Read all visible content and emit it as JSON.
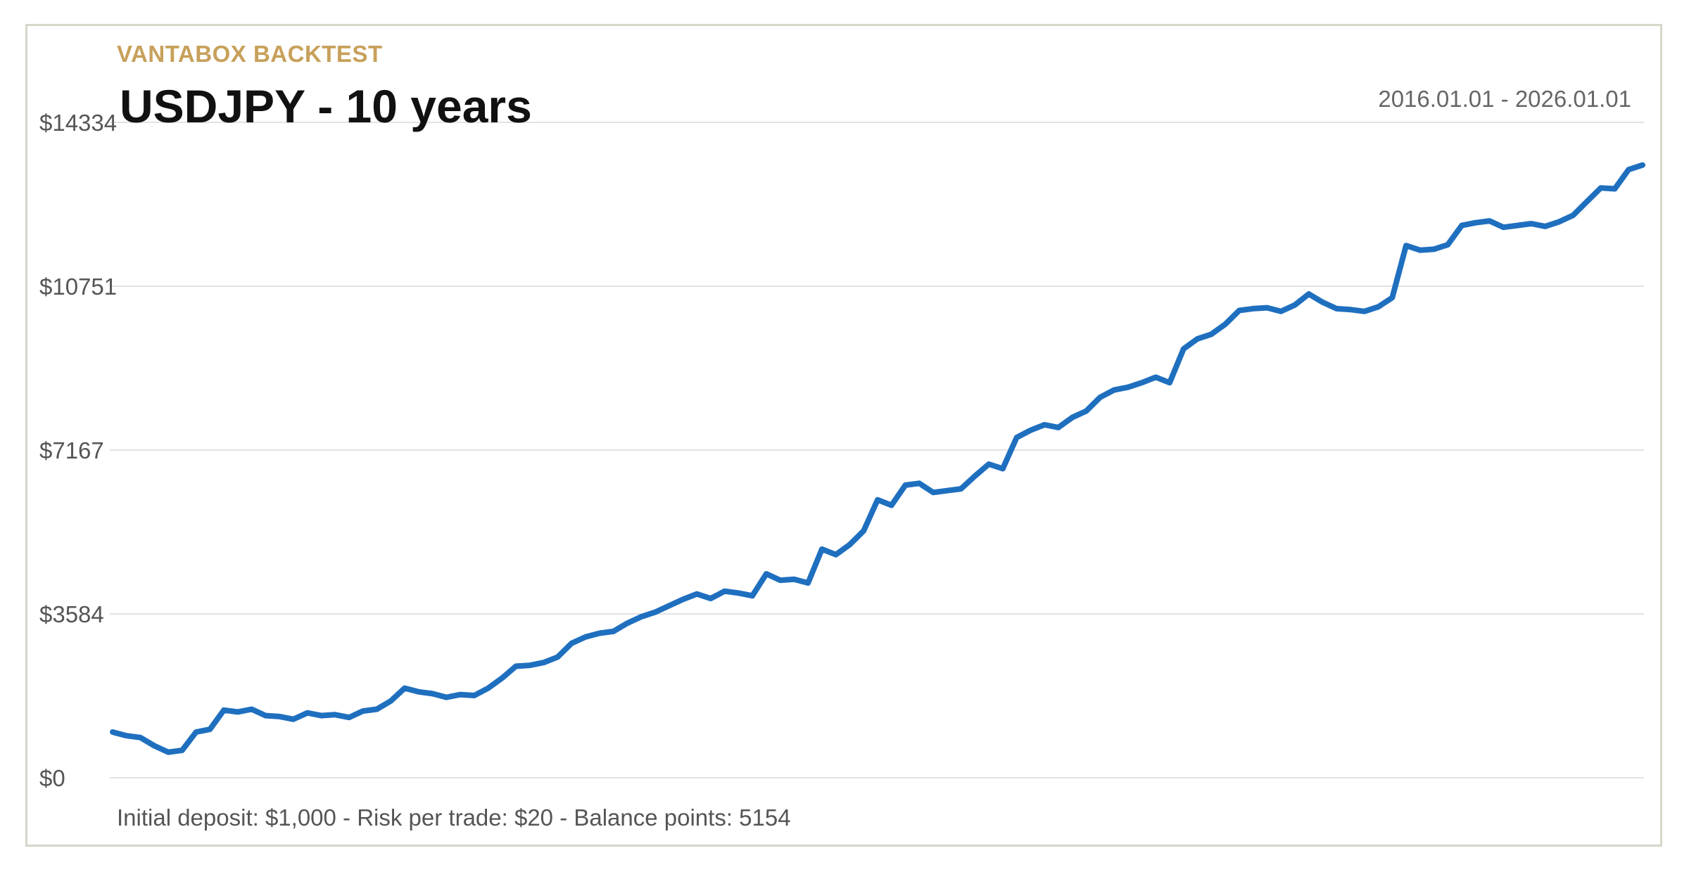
{
  "header": {
    "brand": "VANTABOX BACKTEST",
    "title": "USDJPY - 10 years",
    "date_range": "2016.01.01 - 2026.01.01"
  },
  "footer": {
    "summary": "Initial deposit: $1,000 - Risk per trade: $20 - Balance points: 5154"
  },
  "colors": {
    "line": "#1f6fbf",
    "grid": "#e2e2e2",
    "brand": "#c7a05a",
    "border": "#d6d6c9"
  },
  "chart_data": {
    "type": "line",
    "title": "USDJPY - 10 years",
    "xlabel": "",
    "ylabel": "",
    "ylim": [
      0,
      14334
    ],
    "y_ticks": [
      0,
      3584,
      7167,
      10751,
      14334
    ],
    "y_tick_labels": [
      "$0",
      "$3584",
      "$7167",
      "$10751",
      "$14334"
    ],
    "grid": true,
    "x_range": [
      "2016.01.01",
      "2026.01.01"
    ],
    "series": [
      {
        "values": [
          1000,
          920,
          880,
          700,
          560,
          600,
          1000,
          1060,
          1480,
          1440,
          1500,
          1360,
          1340,
          1280,
          1420,
          1360,
          1380,
          1320,
          1460,
          1500,
          1680,
          1960,
          1880,
          1840,
          1760,
          1820,
          1800,
          1960,
          2180,
          2440,
          2460,
          2520,
          2640,
          2940,
          3080,
          3160,
          3200,
          3380,
          3520,
          3620,
          3760,
          3900,
          4020,
          3920,
          4080,
          4040,
          3980,
          4460,
          4320,
          4340,
          4260,
          5000,
          4880,
          5100,
          5400,
          6080,
          5960,
          6400,
          6440,
          6240,
          6280,
          6320,
          6600,
          6860,
          6760,
          7440,
          7600,
          7720,
          7660,
          7880,
          8020,
          8320,
          8480,
          8540,
          8640,
          8760,
          8640,
          9380,
          9600,
          9700,
          9920,
          10220,
          10260,
          10280,
          10200,
          10340,
          10580,
          10400,
          10260,
          10240,
          10200,
          10300,
          10500,
          11640,
          11540,
          11560,
          11660,
          12080,
          12140,
          12180,
          12040,
          12080,
          12120,
          12060,
          12160,
          12300,
          12600,
          12900,
          12880,
          13300,
          13400
        ]
      }
    ]
  }
}
